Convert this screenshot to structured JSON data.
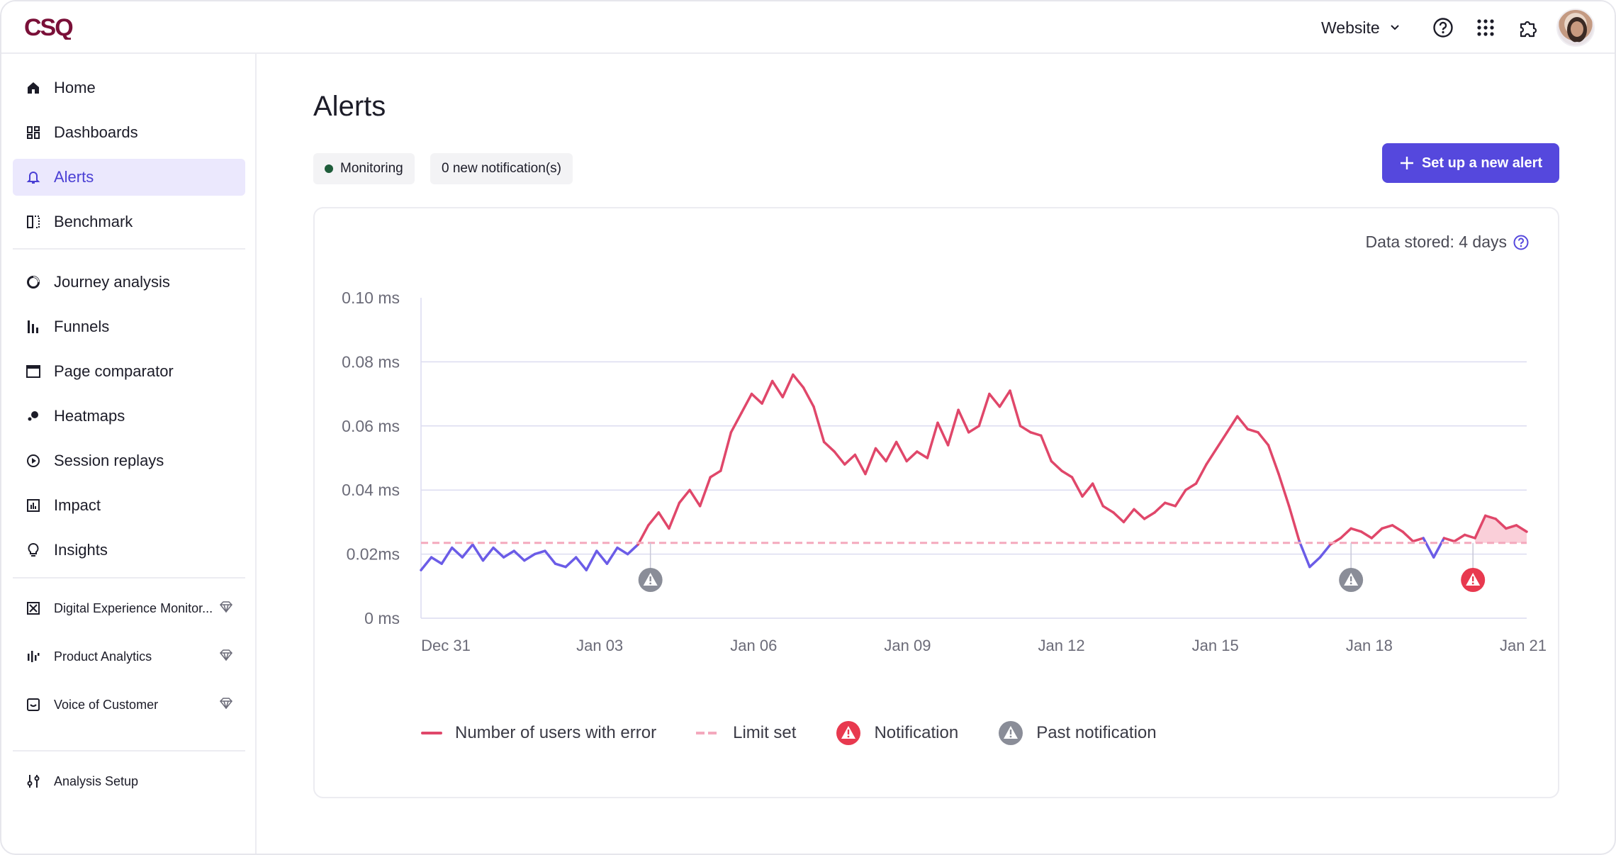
{
  "brand": {
    "logo_text": "CSQ"
  },
  "header": {
    "site_selector": "Website"
  },
  "sidebar": {
    "items": [
      {
        "label": "Home",
        "icon": "home-icon"
      },
      {
        "label": "Dashboards",
        "icon": "dashboards-icon"
      },
      {
        "label": "Alerts",
        "icon": "bell-icon",
        "active": true
      },
      {
        "label": "Benchmark",
        "icon": "benchmark-icon"
      },
      {
        "label": "Journey analysis",
        "icon": "journey-icon"
      },
      {
        "label": "Funnels",
        "icon": "funnels-icon"
      },
      {
        "label": "Page comparator",
        "icon": "page-comparator-icon"
      },
      {
        "label": "Heatmaps",
        "icon": "heatmaps-icon"
      },
      {
        "label": "Session replays",
        "icon": "play-icon"
      },
      {
        "label": "Impact",
        "icon": "impact-icon"
      },
      {
        "label": "Insights",
        "icon": "lightbulb-icon"
      },
      {
        "label": "Digital Experience Monitor...",
        "icon": "dem-icon",
        "premium": true
      },
      {
        "label": "Product Analytics",
        "icon": "product-analytics-icon",
        "premium": true
      },
      {
        "label": "Voice of Customer",
        "icon": "voc-icon",
        "premium": true
      },
      {
        "label": "Analysis Setup",
        "icon": "settings-sliders-icon"
      }
    ]
  },
  "main": {
    "title": "Alerts",
    "status_chip": "Monitoring",
    "notifications_chip": "0 new notification(s)",
    "new_alert_button": "Set up a new alert",
    "data_stored": "Data stored: 4 days"
  },
  "colors": {
    "accent": "#5548dd",
    "error_line": "#e0476a",
    "normal_line": "#6b5ce7",
    "limit": "#f4a9bd",
    "notification": "#e8394f",
    "past_notification": "#8a8d98"
  },
  "chart_data": {
    "type": "line",
    "y_ticks": [
      "0 ms",
      "0.02ms",
      "0.04 ms",
      "0.06 ms",
      "0.08 ms",
      "0.10 ms"
    ],
    "ylim": [
      0,
      0.1
    ],
    "x_ticks": [
      "Dec 31",
      "Jan 03",
      "Jan 06",
      "Jan 09",
      "Jan 12",
      "Jan 15",
      "Jan 18",
      "Jan 21"
    ],
    "x_range_days": [
      0,
      22
    ],
    "limit": 0.0235,
    "series": [
      {
        "name": "Number of users with error",
        "points": [
          [
            0,
            0.015
          ],
          [
            0.25,
            0.019
          ],
          [
            0.5,
            0.017
          ],
          [
            0.75,
            0.022
          ],
          [
            1.0,
            0.019
          ],
          [
            1.25,
            0.023
          ],
          [
            1.5,
            0.018
          ],
          [
            1.75,
            0.022
          ],
          [
            2.0,
            0.019
          ],
          [
            2.25,
            0.021
          ],
          [
            2.5,
            0.018
          ],
          [
            2.75,
            0.02
          ],
          [
            3.0,
            0.021
          ],
          [
            3.25,
            0.017
          ],
          [
            3.5,
            0.016
          ],
          [
            3.75,
            0.019
          ],
          [
            4.0,
            0.015
          ],
          [
            4.25,
            0.021
          ],
          [
            4.5,
            0.017
          ],
          [
            4.75,
            0.022
          ],
          [
            5.0,
            0.02
          ],
          [
            5.25,
            0.023
          ],
          [
            5.5,
            0.029
          ],
          [
            5.75,
            0.033
          ],
          [
            6.0,
            0.028
          ],
          [
            6.25,
            0.036
          ],
          [
            6.5,
            0.04
          ],
          [
            6.75,
            0.035
          ],
          [
            7.0,
            0.044
          ],
          [
            7.25,
            0.046
          ],
          [
            7.5,
            0.058
          ],
          [
            7.75,
            0.064
          ],
          [
            8.0,
            0.07
          ],
          [
            8.25,
            0.067
          ],
          [
            8.5,
            0.074
          ],
          [
            8.75,
            0.069
          ],
          [
            9.0,
            0.076
          ],
          [
            9.25,
            0.072
          ],
          [
            9.5,
            0.066
          ],
          [
            9.75,
            0.055
          ],
          [
            10.0,
            0.052
          ],
          [
            10.25,
            0.048
          ],
          [
            10.5,
            0.051
          ],
          [
            10.75,
            0.045
          ],
          [
            11.0,
            0.053
          ],
          [
            11.25,
            0.049
          ],
          [
            11.5,
            0.055
          ],
          [
            11.75,
            0.049
          ],
          [
            12.0,
            0.052
          ],
          [
            12.25,
            0.05
          ],
          [
            12.5,
            0.061
          ],
          [
            12.75,
            0.054
          ],
          [
            13.0,
            0.065
          ],
          [
            13.25,
            0.058
          ],
          [
            13.5,
            0.06
          ],
          [
            13.75,
            0.07
          ],
          [
            14.0,
            0.066
          ],
          [
            14.25,
            0.071
          ],
          [
            14.5,
            0.06
          ],
          [
            14.75,
            0.058
          ],
          [
            15.0,
            0.057
          ],
          [
            15.25,
            0.049
          ],
          [
            15.5,
            0.046
          ],
          [
            15.75,
            0.044
          ],
          [
            16.0,
            0.038
          ],
          [
            16.25,
            0.042
          ],
          [
            16.5,
            0.035
          ],
          [
            16.75,
            0.033
          ],
          [
            17.0,
            0.03
          ],
          [
            17.25,
            0.034
          ],
          [
            17.5,
            0.031
          ],
          [
            17.75,
            0.033
          ],
          [
            18.0,
            0.036
          ],
          [
            18.25,
            0.035
          ],
          [
            18.5,
            0.04
          ],
          [
            18.75,
            0.042
          ],
          [
            19.0,
            0.048
          ],
          [
            19.25,
            0.053
          ],
          [
            19.5,
            0.058
          ],
          [
            19.75,
            0.063
          ],
          [
            20.0,
            0.059
          ],
          [
            20.25,
            0.058
          ],
          [
            20.5,
            0.054
          ],
          [
            20.75,
            0.045
          ],
          [
            21.0,
            0.035
          ],
          [
            21.25,
            0.024
          ],
          [
            21.5,
            0.016
          ],
          [
            21.75,
            0.019
          ],
          [
            22.0,
            0.023
          ],
          [
            22.25,
            0.025
          ],
          [
            22.5,
            0.028
          ],
          [
            22.75,
            0.027
          ],
          [
            23.0,
            0.025
          ],
          [
            23.25,
            0.028
          ],
          [
            23.5,
            0.029
          ],
          [
            23.75,
            0.027
          ],
          [
            24.0,
            0.024
          ],
          [
            24.25,
            0.025
          ],
          [
            24.5,
            0.019
          ],
          [
            24.75,
            0.025
          ],
          [
            25.0,
            0.024
          ],
          [
            25.25,
            0.026
          ],
          [
            25.5,
            0.025
          ],
          [
            25.75,
            0.032
          ],
          [
            26.0,
            0.031
          ],
          [
            26.25,
            0.028
          ],
          [
            26.5,
            0.029
          ],
          [
            26.75,
            0.027
          ]
        ]
      },
      {
        "name": "Limit set",
        "value": 0.0235
      }
    ],
    "notifications": [
      {
        "day": 5.55,
        "kind": "past"
      },
      {
        "day": 22.5,
        "kind": "past"
      },
      {
        "day": 25.45,
        "kind": "active"
      }
    ],
    "legend": [
      "Number of users with error",
      "Limit set",
      "Notification",
      "Past notification"
    ]
  }
}
